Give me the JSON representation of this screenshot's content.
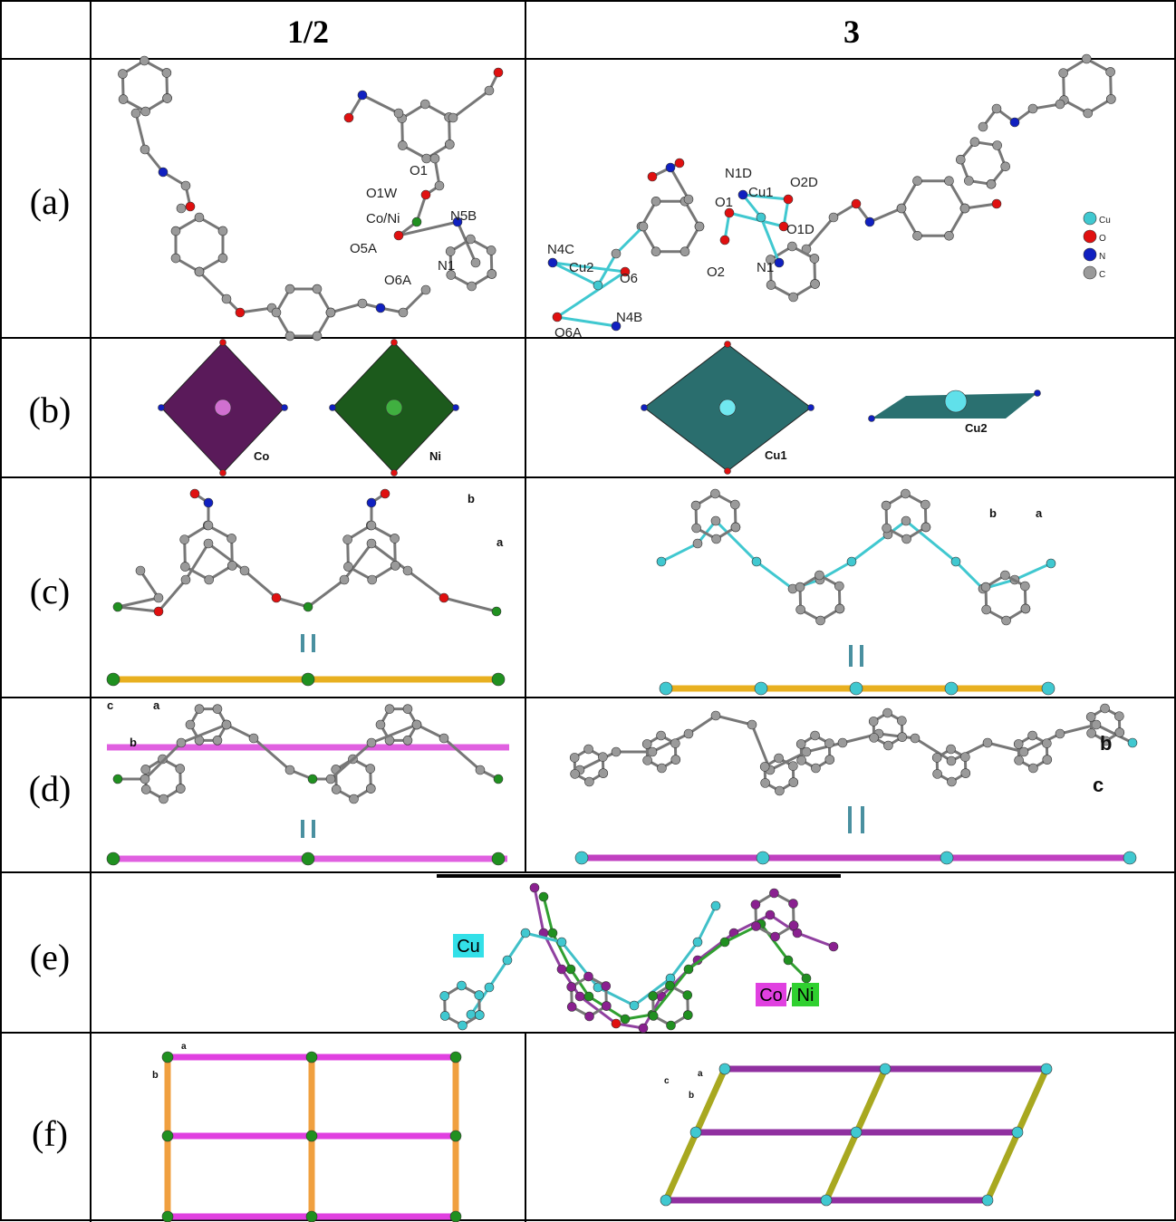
{
  "header": {
    "columns": [
      "1/2",
      "3"
    ]
  },
  "rows": [
    {
      "label": "(a)",
      "left_labels": [
        "O1",
        "O1W",
        "Co/Ni",
        "N5B",
        "O5A",
        "O6A",
        "N1"
      ],
      "right_labels": [
        "N1D",
        "Cu1",
        "O2D",
        "O1",
        "O1D",
        "N4C",
        "Cu2",
        "O6",
        "O2",
        "N1",
        "O6A",
        "N4B"
      ],
      "legend": [
        "Cu",
        "O",
        "N",
        "C"
      ]
    },
    {
      "label": "(b)",
      "left_labels": [
        "Co",
        "Ni"
      ],
      "right_labels": [
        "Cu1",
        "Cu2"
      ]
    },
    {
      "label": "(c)",
      "left_axes": [
        "b",
        "a"
      ],
      "right_axes": [
        "b",
        "a"
      ]
    },
    {
      "label": "(d)",
      "left_axes": [
        "c",
        "a",
        "b"
      ],
      "right_axes": [
        "b",
        "c"
      ]
    },
    {
      "label": "(e)",
      "labels": [
        "Cu",
        "Co",
        "/",
        "Ni"
      ]
    },
    {
      "label": "(f)",
      "left_axes": [
        "a",
        "b"
      ],
      "right_axes": [
        "c",
        "a",
        "b"
      ]
    }
  ]
}
